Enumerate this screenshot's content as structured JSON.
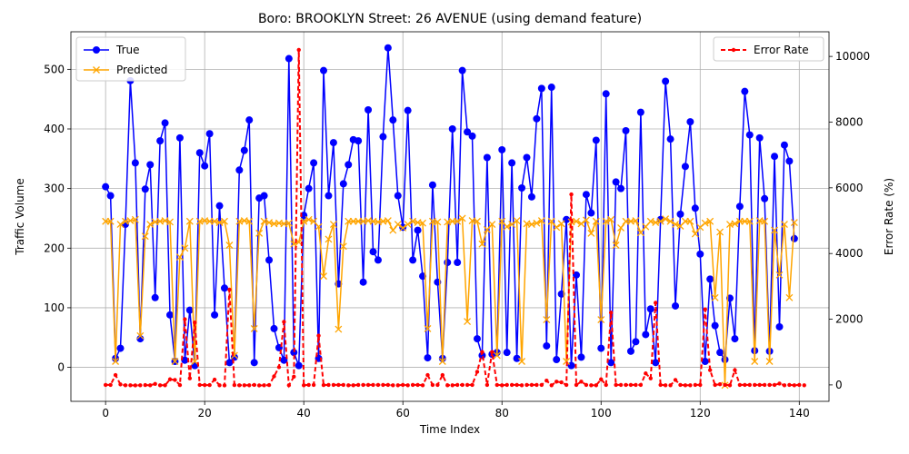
{
  "chart_data": {
    "type": "line",
    "title": "Boro: BROOKLYN Street: 26 AVENUE (using demand feature)",
    "xlabel": "Time Index",
    "ylabel_left": "Traffic Volume",
    "ylabel_right": "Error Rate (%)",
    "xlim": [
      -7,
      146
    ],
    "ylim_left": [
      -57,
      563
    ],
    "ylim_right": [
      -500,
      10750
    ],
    "xticks": [
      0,
      20,
      40,
      60,
      80,
      100,
      120,
      140
    ],
    "yticks_left": [
      0,
      100,
      200,
      300,
      400,
      500
    ],
    "yticks_right": [
      0,
      2000,
      4000,
      6000,
      8000,
      10000
    ],
    "grid": true,
    "legend_left": "upper-left",
    "legend_right": "upper-right",
    "colors": {
      "true": "#0000ff",
      "predicted": "#ffa500",
      "error": "#ff0000"
    },
    "series": [
      {
        "name": "True",
        "values": [
          303,
          288,
          15,
          32,
          240,
          481,
          343,
          48,
          299,
          340,
          117,
          380,
          410,
          88,
          10,
          385,
          12,
          96,
          3,
          360,
          338,
          392,
          88,
          271,
          133,
          8,
          17,
          331,
          364,
          415,
          8,
          284,
          288,
          180,
          65,
          33,
          12,
          518,
          25,
          3,
          255,
          300,
          343,
          15,
          498,
          288,
          377,
          140,
          308,
          340,
          382,
          380,
          143,
          432,
          194,
          180,
          387,
          536,
          415,
          288,
          235,
          431,
          180,
          230,
          153,
          16,
          306,
          143,
          15,
          176,
          400,
          176,
          498,
          395,
          388,
          48,
          20,
          352,
          22,
          25,
          365,
          25,
          343,
          15,
          301,
          352,
          286,
          417,
          468,
          36,
          470,
          13,
          123,
          248,
          3,
          155,
          17,
          290,
          259,
          381,
          32,
          459,
          8,
          311,
          300,
          397,
          27,
          43,
          428,
          55,
          98,
          8,
          248,
          480,
          383,
          103,
          257,
          337,
          412,
          267,
          190,
          10,
          148,
          70,
          25,
          13,
          116,
          48,
          270,
          463,
          390,
          28,
          385,
          283,
          27,
          354,
          68,
          373,
          346,
          216
        ]
      },
      {
        "name": "Predicted",
        "values": [
          245,
          245,
          10,
          240,
          245,
          246,
          248,
          53,
          220,
          240,
          244,
          245,
          246,
          244,
          10,
          185,
          200,
          245,
          10,
          245,
          246,
          245,
          245,
          243,
          245,
          205,
          20,
          245,
          246,
          245,
          65,
          225,
          245,
          243,
          241,
          242,
          241,
          242,
          207,
          210,
          245,
          248,
          245,
          236,
          153,
          215,
          240,
          64,
          203,
          245,
          245,
          245,
          245,
          246,
          245,
          244,
          245,
          246,
          230,
          240,
          234,
          240,
          245,
          243,
          242,
          65,
          245,
          244,
          10,
          244,
          245,
          245,
          250,
          77,
          246,
          245,
          207,
          231,
          240,
          20,
          245,
          236,
          240,
          246,
          10,
          241,
          240,
          242,
          246,
          80,
          245,
          235,
          241,
          10,
          244,
          245,
          241,
          247,
          225,
          245,
          80,
          245,
          248,
          205,
          234,
          245,
          245,
          246,
          226,
          236,
          245,
          243,
          245,
          249,
          245,
          240,
          237,
          245,
          245,
          224,
          235,
          242,
          245,
          117,
          227,
          -30,
          240,
          241,
          245,
          245,
          245,
          10,
          246,
          245,
          10,
          230,
          155,
          240,
          117,
          243
        ]
      },
      {
        "name": "Error Rate",
        "values": [
          0,
          0,
          300,
          15,
          -10,
          -10,
          -15,
          -10,
          -5,
          -10,
          30,
          -10,
          -10,
          170,
          150,
          -5,
          2000,
          200,
          1900,
          0,
          -5,
          -5,
          160,
          -10,
          -15,
          2900,
          -5,
          -10,
          -10,
          -10,
          0,
          -15,
          -10,
          -5,
          260,
          540,
          1920,
          -10,
          250,
          10200,
          -10,
          0,
          0,
          1500,
          -5,
          0,
          0,
          0,
          0,
          -10,
          -10,
          0,
          0,
          0,
          0,
          0,
          0,
          0,
          -10,
          -10,
          0,
          -10,
          0,
          0,
          -10,
          300,
          0,
          0,
          300,
          -10,
          -10,
          0,
          0,
          0,
          0,
          400,
          1000,
          0,
          1000,
          0,
          -10,
          0,
          0,
          0,
          -10,
          0,
          0,
          0,
          0,
          130,
          -10,
          100,
          80,
          0,
          5800,
          0,
          100,
          0,
          -10,
          -10,
          170,
          0,
          2200,
          0,
          0,
          0,
          0,
          0,
          0,
          350,
          200,
          2500,
          0,
          -10,
          -10,
          150,
          0,
          -10,
          -10,
          0,
          0,
          2300,
          450,
          0,
          20,
          0,
          -10,
          450,
          0,
          0,
          0,
          0,
          0,
          0,
          0,
          0,
          40,
          -10,
          0,
          -10,
          0,
          -10
        ]
      }
    ]
  }
}
